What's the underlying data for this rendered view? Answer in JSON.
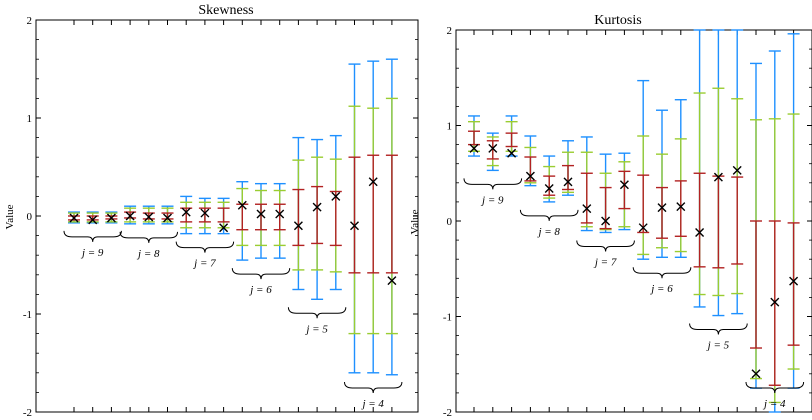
{
  "chart_data": [
    {
      "type": "errorbar",
      "title": "Skewness",
      "ylabel": "Value",
      "ylim": [
        -2,
        2
      ],
      "yticks": [
        -2,
        -1,
        0,
        1,
        2
      ],
      "series_colors": {
        "outer": "#1e90ff",
        "middle": "#9acd32",
        "inner": "#b22222",
        "marker": "#000000"
      },
      "groups": [
        {
          "label": "j = 9",
          "points": [
            {
              "estimate": -0.02,
              "inner": [
                -0.04,
                0.0
              ],
              "middle": [
                -0.06,
                0.03
              ],
              "outer": [
                -0.07,
                0.04
              ]
            },
            {
              "estimate": -0.04,
              "inner": [
                -0.04,
                0.0
              ],
              "middle": [
                -0.06,
                0.03
              ],
              "outer": [
                -0.07,
                0.04
              ]
            },
            {
              "estimate": -0.02,
              "inner": [
                -0.03,
                0.0
              ],
              "middle": [
                -0.06,
                0.03
              ],
              "outer": [
                -0.07,
                0.04
              ]
            }
          ]
        },
        {
          "label": "j = 8",
          "points": [
            {
              "estimate": 0.0,
              "inner": [
                -0.02,
                0.04
              ],
              "middle": [
                -0.06,
                0.08
              ],
              "outer": [
                -0.08,
                0.1
              ]
            },
            {
              "estimate": -0.01,
              "inner": [
                -0.03,
                0.03
              ],
              "middle": [
                -0.06,
                0.08
              ],
              "outer": [
                -0.08,
                0.1
              ]
            },
            {
              "estimate": -0.02,
              "inner": [
                -0.03,
                0.03
              ],
              "middle": [
                -0.06,
                0.08
              ],
              "outer": [
                -0.08,
                0.1
              ]
            }
          ]
        },
        {
          "label": "j = 7",
          "points": [
            {
              "estimate": 0.04,
              "inner": [
                -0.06,
                0.08
              ],
              "middle": [
                -0.12,
                0.14
              ],
              "outer": [
                -0.18,
                0.2
              ]
            },
            {
              "estimate": 0.03,
              "inner": [
                -0.06,
                0.08
              ],
              "middle": [
                -0.12,
                0.14
              ],
              "outer": [
                -0.18,
                0.18
              ]
            },
            {
              "estimate": -0.12,
              "inner": [
                -0.06,
                0.08
              ],
              "middle": [
                -0.12,
                0.14
              ],
              "outer": [
                -0.18,
                0.18
              ]
            }
          ]
        },
        {
          "label": "j = 6",
          "points": [
            {
              "estimate": 0.11,
              "inner": [
                -0.14,
                0.12
              ],
              "middle": [
                -0.3,
                0.28
              ],
              "outer": [
                -0.45,
                0.35
              ]
            },
            {
              "estimate": 0.02,
              "inner": [
                -0.14,
                0.12
              ],
              "middle": [
                -0.3,
                0.26
              ],
              "outer": [
                -0.43,
                0.33
              ]
            },
            {
              "estimate": 0.02,
              "inner": [
                -0.14,
                0.12
              ],
              "middle": [
                -0.3,
                0.26
              ],
              "outer": [
                -0.43,
                0.33
              ]
            }
          ]
        },
        {
          "label": "j = 5",
          "points": [
            {
              "estimate": -0.1,
              "inner": [
                -0.3,
                0.27
              ],
              "middle": [
                -0.55,
                0.57
              ],
              "outer": [
                -0.75,
                0.8
              ]
            },
            {
              "estimate": 0.09,
              "inner": [
                -0.28,
                0.3
              ],
              "middle": [
                -0.55,
                0.6
              ],
              "outer": [
                -0.85,
                0.78
              ]
            },
            {
              "estimate": 0.2,
              "inner": [
                -0.3,
                0.25
              ],
              "middle": [
                -0.57,
                0.58
              ],
              "outer": [
                -0.75,
                0.82
              ]
            }
          ]
        },
        {
          "label": "j = 4",
          "points": [
            {
              "estimate": -0.1,
              "inner": [
                -0.58,
                0.6
              ],
              "middle": [
                -1.2,
                1.12
              ],
              "outer": [
                -1.6,
                1.55
              ]
            },
            {
              "estimate": 0.35,
              "inner": [
                -0.58,
                0.62
              ],
              "middle": [
                -1.2,
                1.1
              ],
              "outer": [
                -1.6,
                1.58
              ]
            },
            {
              "estimate": -0.66,
              "inner": [
                -0.58,
                0.62
              ],
              "middle": [
                -1.2,
                1.2
              ],
              "outer": [
                -1.62,
                1.6
              ]
            }
          ]
        }
      ]
    },
    {
      "type": "errorbar",
      "title": "Kurtosis",
      "ylabel": "Value",
      "ylim": [
        -2,
        2
      ],
      "yticks": [
        -2,
        -1,
        0,
        1,
        2
      ],
      "series_colors": {
        "outer": "#1e90ff",
        "middle": "#9acd32",
        "inner": "#b22222",
        "marker": "#000000"
      },
      "groups": [
        {
          "label": "j = 9",
          "points": [
            {
              "estimate": 0.76,
              "inner": [
                0.8,
                0.94
              ],
              "middle": [
                0.73,
                1.04
              ],
              "outer": [
                0.68,
                1.1
              ]
            },
            {
              "estimate": 0.76,
              "inner": [
                0.65,
                0.84
              ],
              "middle": [
                0.58,
                0.88
              ],
              "outer": [
                0.53,
                0.92
              ]
            },
            {
              "estimate": 0.71,
              "inner": [
                0.78,
                0.92
              ],
              "middle": [
                0.73,
                1.04
              ],
              "outer": [
                0.68,
                1.1
              ]
            }
          ]
        },
        {
          "label": "j = 8",
          "points": [
            {
              "estimate": 0.47,
              "inner": [
                0.42,
                0.67
              ],
              "middle": [
                0.4,
                0.77
              ],
              "outer": [
                0.37,
                0.89
              ]
            },
            {
              "estimate": 0.34,
              "inner": [
                0.27,
                0.47
              ],
              "middle": [
                0.24,
                0.57
              ],
              "outer": [
                0.2,
                0.68
              ]
            },
            {
              "estimate": 0.41,
              "inner": [
                0.33,
                0.58
              ],
              "middle": [
                0.3,
                0.72
              ],
              "outer": [
                0.27,
                0.84
              ]
            }
          ]
        },
        {
          "label": "j = 7",
          "points": [
            {
              "estimate": 0.13,
              "inner": [
                -0.02,
                0.5
              ],
              "middle": [
                -0.06,
                0.72
              ],
              "outer": [
                -0.1,
                0.88
              ]
            },
            {
              "estimate": 0.0,
              "inner": [
                -0.08,
                0.35
              ],
              "middle": [
                -0.09,
                0.5
              ],
              "outer": [
                -0.12,
                0.7
              ]
            },
            {
              "estimate": 0.38,
              "inner": [
                0.13,
                0.52
              ],
              "middle": [
                -0.06,
                0.62
              ],
              "outer": [
                -0.09,
                0.71
              ]
            }
          ]
        },
        {
          "label": "j = 6",
          "points": [
            {
              "estimate": -0.07,
              "inner": [
                -0.12,
                0.48
              ],
              "middle": [
                -0.35,
                0.89
              ],
              "outer": [
                -0.4,
                1.47
              ]
            },
            {
              "estimate": 0.14,
              "inner": [
                -0.18,
                0.35
              ],
              "middle": [
                -0.28,
                0.7
              ],
              "outer": [
                -0.38,
                1.16
              ]
            },
            {
              "estimate": 0.15,
              "inner": [
                -0.16,
                0.42
              ],
              "middle": [
                -0.32,
                0.86
              ],
              "outer": [
                -0.38,
                1.27
              ]
            }
          ]
        },
        {
          "label": "j = 5",
          "points": [
            {
              "estimate": -0.12,
              "inner": [
                -0.48,
                0.5
              ],
              "middle": [
                -0.77,
                1.34
              ],
              "outer": [
                -0.9,
                2.0
              ]
            },
            {
              "estimate": 0.46,
              "inner": [
                -0.49,
                0.47
              ],
              "middle": [
                -0.78,
                1.39
              ],
              "outer": [
                -0.99,
                2.0
              ]
            },
            {
              "estimate": 0.53,
              "inner": [
                -0.45,
                0.46
              ],
              "middle": [
                -0.76,
                1.28
              ],
              "outer": [
                -0.97,
                2.0
              ]
            }
          ]
        },
        {
          "label": "j = 4",
          "points": [
            {
              "estimate": -1.6,
              "inner": [
                -1.33,
                0.0
              ],
              "middle": [
                -1.65,
                1.06
              ],
              "outer": [
                -1.75,
                1.65
              ]
            },
            {
              "estimate": -0.85,
              "inner": [
                -1.72,
                0.0
              ],
              "middle": [
                -1.9,
                1.07
              ],
              "outer": [
                -2.0,
                1.78
              ]
            },
            {
              "estimate": -0.63,
              "inner": [
                -1.3,
                -0.02
              ],
              "middle": [
                -1.55,
                1.12
              ],
              "outer": [
                -1.75,
                1.96
              ]
            }
          ]
        }
      ]
    }
  ]
}
